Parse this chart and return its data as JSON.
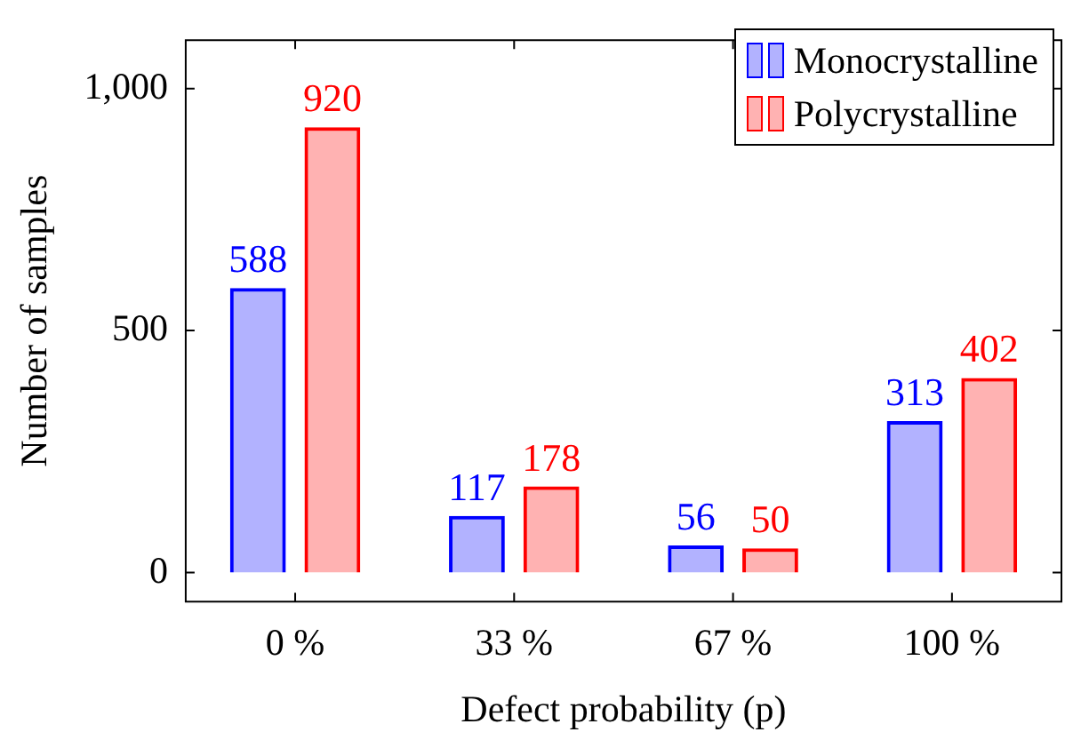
{
  "chart_data": {
    "type": "bar",
    "xlabel": "Defect probability (p)",
    "ylabel": "Number of samples",
    "categories": [
      "0 %",
      "33 %",
      "67 %",
      "100 %"
    ],
    "series": [
      {
        "name": "Monocrystalline",
        "color": "#0000ff",
        "values": [
          588,
          117,
          56,
          313
        ]
      },
      {
        "name": "Polycrystalline",
        "color": "#ff0000",
        "values": [
          920,
          178,
          50,
          402
        ]
      }
    ],
    "ylim": [
      -60,
      1100
    ],
    "yticks": [
      0,
      500,
      {
        "value": 1000,
        "label": "1,000"
      }
    ],
    "grid": false,
    "legend": "top right",
    "data_labels": true
  }
}
